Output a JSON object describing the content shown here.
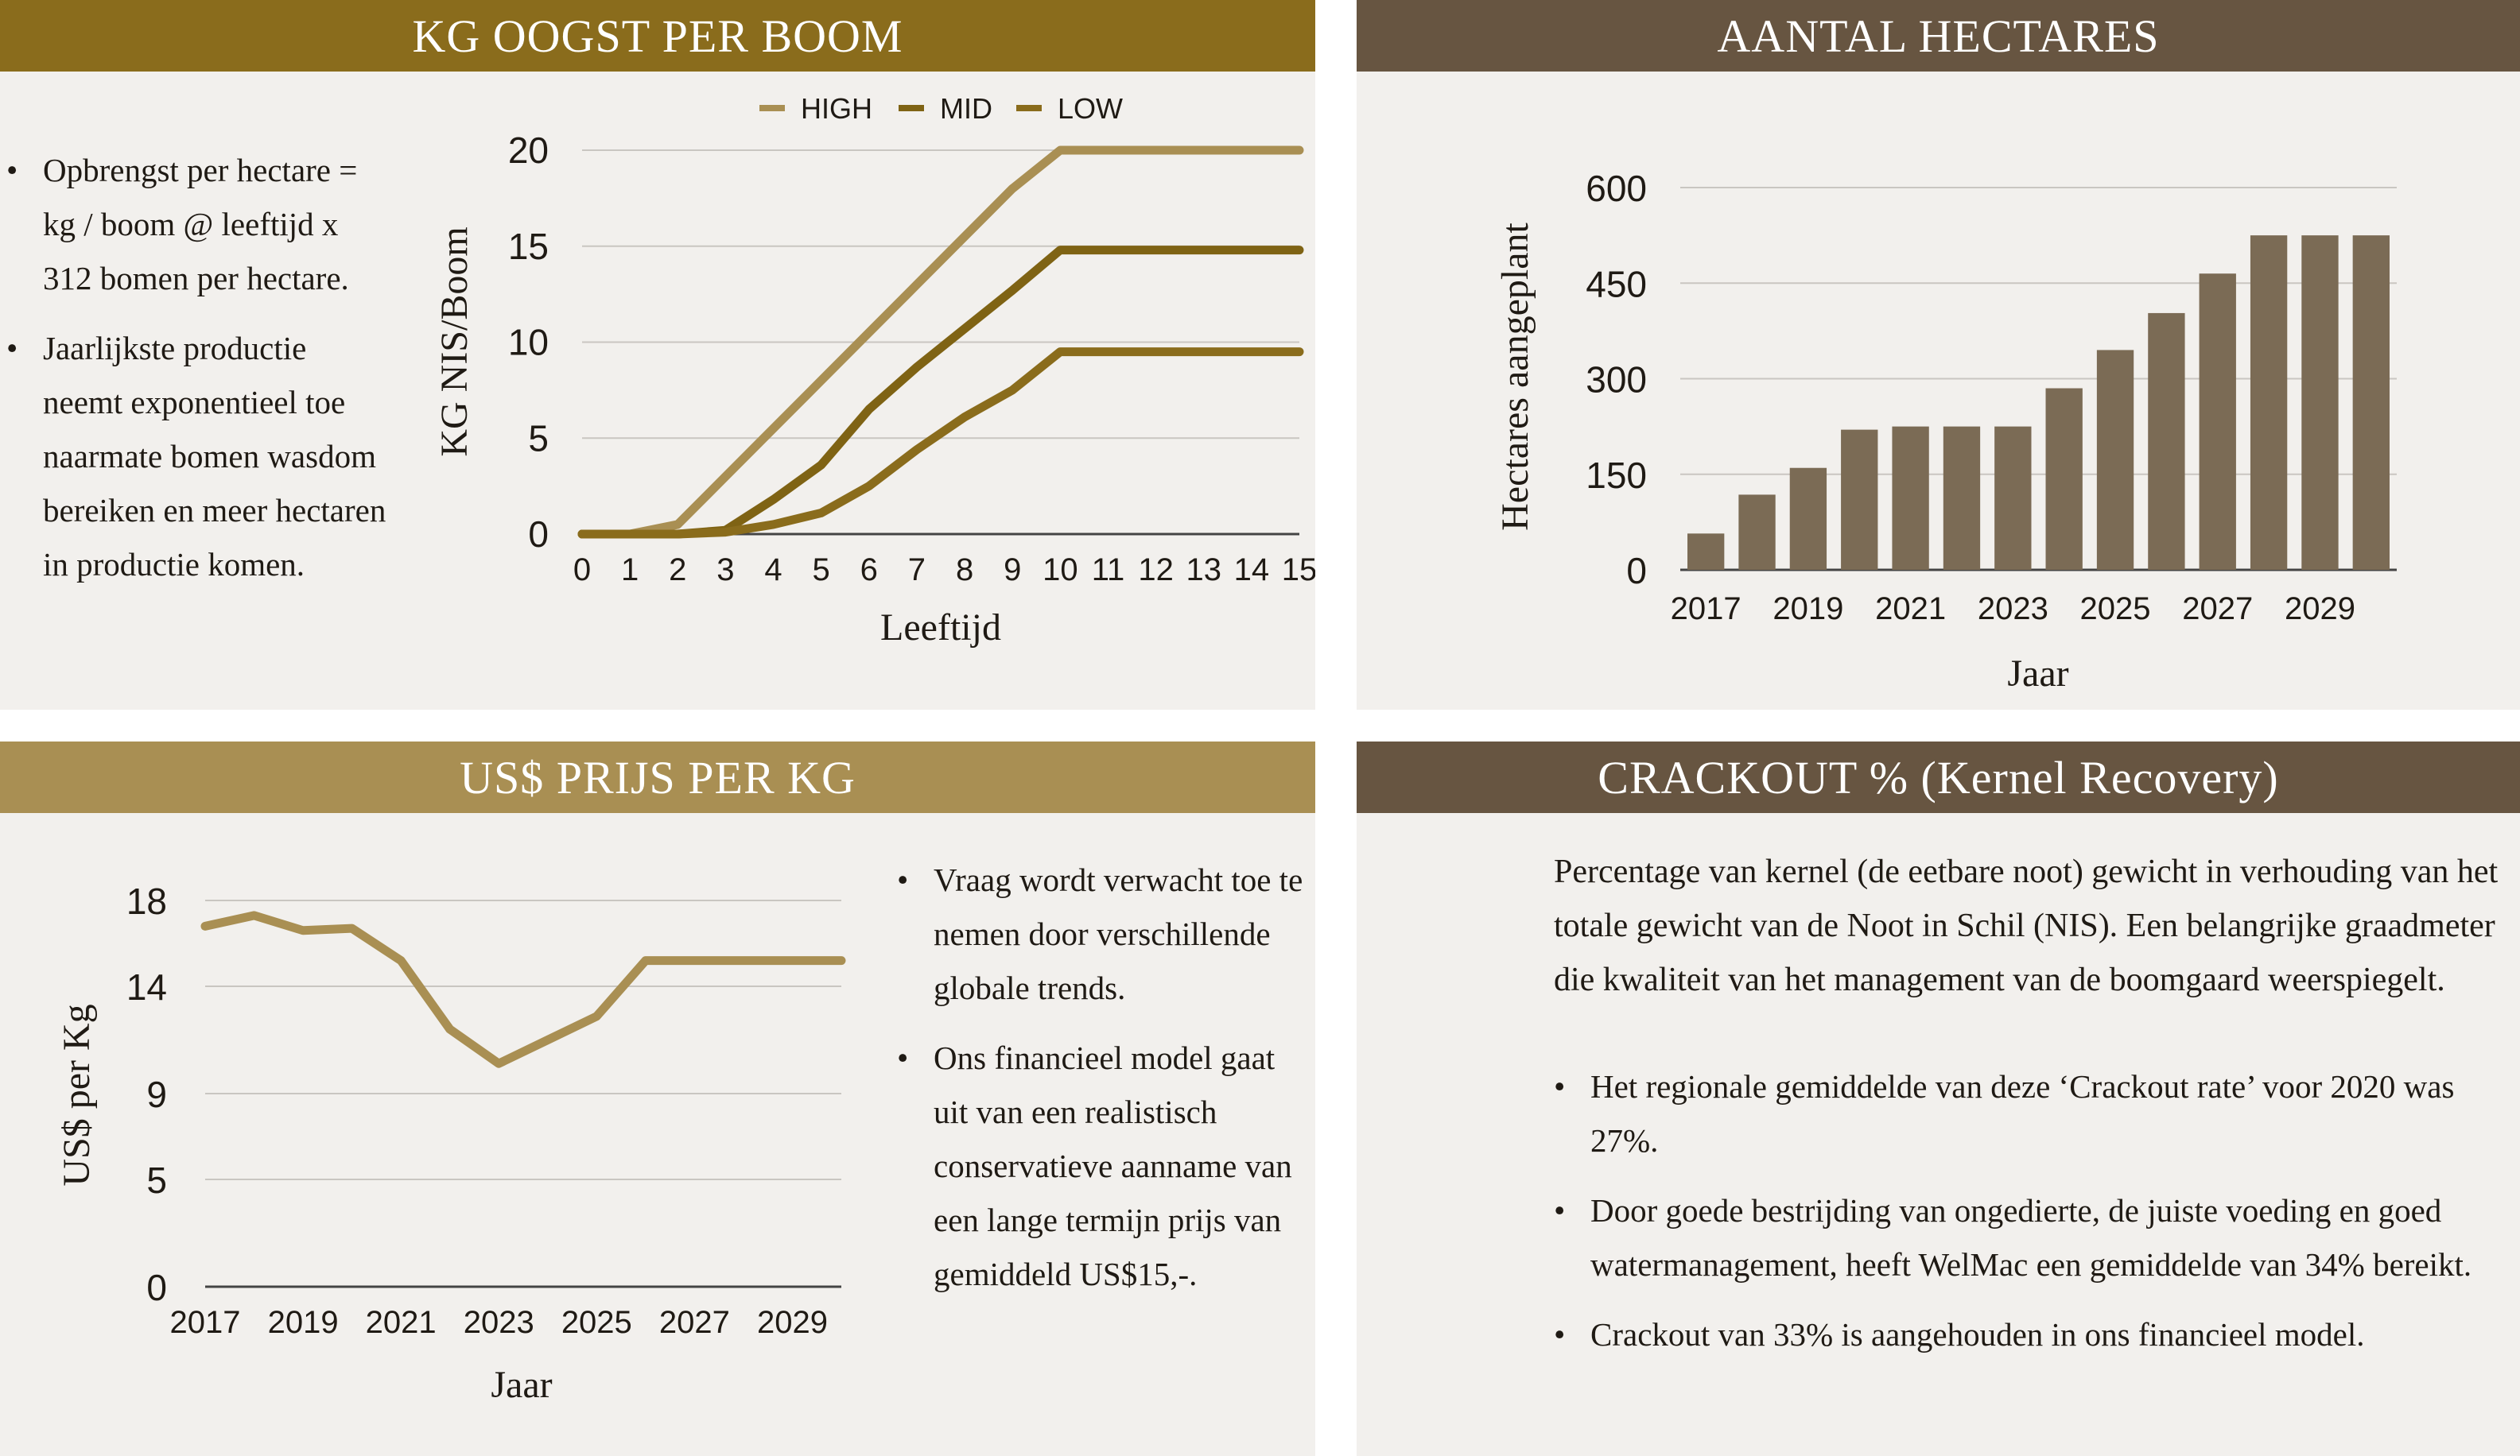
{
  "colors": {
    "header_olive": "#8a6c1c",
    "header_khaki": "#a98f53",
    "header_brown": "#675541",
    "panel_bg": "#f2f0ed",
    "high": "#a98f53",
    "mid": "#7f6314",
    "low": "#8a6c1c",
    "bar": "#7b6b55",
    "price_line": "#a98f53"
  },
  "panels": {
    "kg": {
      "title": "KG OOGST PER BOOM",
      "bullets": [
        "Opbrengst per hectare = kg / boom @ leeftijd x 312 bomen per hectare.",
        "Jaarlijkste productie neemt exponentieel toe naarmate bomen wasdom bereiken en meer hectaren in productie komen."
      ]
    },
    "hectares": {
      "title": "AANTAL HECTARES"
    },
    "price": {
      "title": "US$ PRIJS PER KG",
      "bullets": [
        "Vraag wordt verwacht toe te nemen door verschillende globale trends.",
        "Ons financieel model gaat uit van een realistisch conservatieve aanname van een lange termijn prijs van gemiddeld US$15,-."
      ]
    },
    "crackout": {
      "title": "CRACKOUT % (Kernel Recovery)",
      "intro": "Percentage van kernel (de eetbare noot) gewicht in verhouding van het totale gewicht van de Noot in Schil (NIS). Een belangrijke graadmeter die kwaliteit van het management van de boomgaard weerspiegelt.",
      "bullets": [
        "Het regionale gemiddelde van deze ‘Crackout rate’ voor 2020 was 27%.",
        "Door goede bestrijding van ongedierte, de juiste voeding en goed watermanagement, heeft WelMac een gemiddelde van 34% bereikt.",
        "Crackout van 33% is aangehouden in ons financieel model."
      ]
    }
  },
  "chart_data": [
    {
      "type": "line",
      "xlabel": "Leeftijd",
      "ylabel": "KG NIS/Boom",
      "x": [
        0,
        1,
        2,
        3,
        4,
        5,
        6,
        7,
        8,
        9,
        10,
        11,
        12,
        13,
        14,
        15
      ],
      "xlim": [
        0,
        15
      ],
      "ylim": [
        0,
        20
      ],
      "yticks": [
        0,
        5,
        10,
        15,
        20
      ],
      "grid": true,
      "legend": "top",
      "series": [
        {
          "name": "HIGH",
          "color": "#a98f53",
          "values": [
            0,
            0,
            0.5,
            3,
            5.5,
            8,
            10.5,
            13,
            15.5,
            18,
            20,
            20,
            20,
            20,
            20,
            20
          ]
        },
        {
          "name": "MID",
          "color": "#7f6314",
          "values": [
            0,
            0,
            0,
            0.2,
            1.8,
            3.6,
            6.5,
            8.7,
            10.7,
            12.7,
            14.8,
            14.8,
            14.8,
            14.8,
            14.8,
            14.8
          ]
        },
        {
          "name": "LOW",
          "color": "#8a6c1c",
          "values": [
            0,
            0,
            0,
            0.1,
            0.5,
            1.1,
            2.5,
            4.4,
            6.1,
            7.5,
            9.5,
            9.5,
            9.5,
            9.5,
            9.5,
            9.5
          ]
        }
      ]
    },
    {
      "type": "bar",
      "xlabel": "Jaar",
      "ylabel": "Hectares aangeplant",
      "categories": [
        "2017",
        "2018",
        "2019",
        "2020",
        "2021",
        "2022",
        "2023",
        "2024",
        "2025",
        "2026",
        "2027",
        "2028",
        "2029",
        "2030"
      ],
      "xtick_labels": [
        "2017",
        "2019",
        "2021",
        "2023",
        "2025",
        "2027",
        "2029"
      ],
      "values": [
        57,
        118,
        160,
        220,
        225,
        225,
        225,
        285,
        345,
        403,
        465,
        525,
        525,
        525
      ],
      "ylim": [
        0,
        600
      ],
      "yticks": [
        0,
        150,
        300,
        450,
        600
      ],
      "grid": true
    },
    {
      "type": "line",
      "xlabel": "Jaar",
      "ylabel": "US$ per Kg",
      "x": [
        2017,
        2018,
        2019,
        2020,
        2021,
        2022,
        2023,
        2024,
        2025,
        2026,
        2027,
        2028,
        2029,
        2030
      ],
      "xtick_labels": [
        "2017",
        "2019",
        "2021",
        "2023",
        "2025",
        "2027",
        "2029"
      ],
      "ylim": [
        0,
        18
      ],
      "yticks": [
        0,
        5,
        9,
        14,
        18
      ],
      "grid": true,
      "series": [
        {
          "color": "#a98f53",
          "values": [
            16.8,
            17.3,
            16.6,
            16.7,
            15.2,
            12.0,
            10.4,
            11.5,
            12.6,
            15.2,
            15.2,
            15.2,
            15.2,
            15.2
          ]
        }
      ]
    }
  ]
}
